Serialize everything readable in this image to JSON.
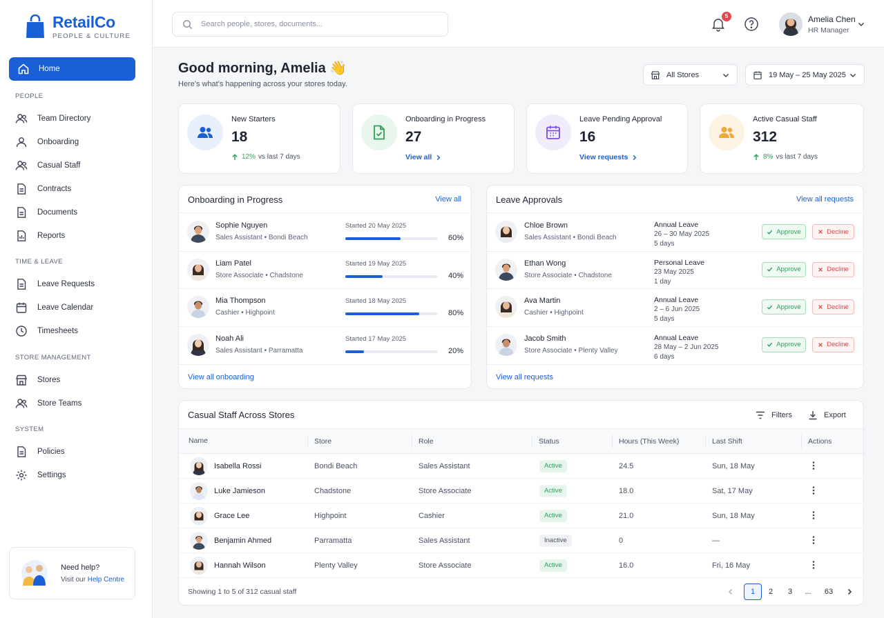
{
  "brand": {
    "name": "RetailCo",
    "tagline": "PEOPLE & CULTURE"
  },
  "sidebar": {
    "home_label": "Home",
    "sections": [
      {
        "title": "PEOPLE",
        "items": [
          {
            "label": "Team Directory",
            "icon": "users-icon"
          },
          {
            "label": "Onboarding",
            "icon": "user-icon"
          },
          {
            "label": "Casual Staff",
            "icon": "users-icon"
          },
          {
            "label": "Contracts",
            "icon": "document-icon"
          },
          {
            "label": "Documents",
            "icon": "document-icon"
          },
          {
            "label": "Reports",
            "icon": "report-icon"
          }
        ]
      },
      {
        "title": "TIME & LEAVE",
        "items": [
          {
            "label": "Leave Requests",
            "icon": "document-icon"
          },
          {
            "label": "Leave Calendar",
            "icon": "calendar-icon"
          },
          {
            "label": "Timesheets",
            "icon": "clock-icon"
          }
        ]
      },
      {
        "title": "STORE MANAGEMENT",
        "items": [
          {
            "label": "Stores",
            "icon": "store-icon"
          },
          {
            "label": "Store Teams",
            "icon": "users-icon"
          }
        ]
      },
      {
        "title": "SYSTEM",
        "items": [
          {
            "label": "Policies",
            "icon": "document-icon"
          },
          {
            "label": "Settings",
            "icon": "gear-icon"
          }
        ]
      }
    ],
    "help": {
      "title": "Need help?",
      "text": "Visit our ",
      "link": "Help Centre"
    }
  },
  "topbar": {
    "search_placeholder": "Search people, stores, documents...",
    "notification_count": "5",
    "user": {
      "name": "Amelia Chen",
      "role": "HR Manager"
    }
  },
  "header": {
    "greeting": "Good morning, Amelia 👋",
    "subtitle": "Here's what's happening across your stores today.",
    "store_filter": "All Stores",
    "date_range": "19 May – 25 May 2025"
  },
  "stats": [
    {
      "label": "New Starters",
      "value": "18",
      "change": "12%",
      "change_text": "vs last 7 days"
    },
    {
      "label": "Onboarding in Progress",
      "value": "27",
      "link": "View all"
    },
    {
      "label": "Leave Pending Approval",
      "value": "16",
      "link": "View requests"
    },
    {
      "label": "Active Casual Staff",
      "value": "312",
      "change": "8%",
      "change_text": "vs last 7 days"
    }
  ],
  "onboarding": {
    "title": "Onboarding in Progress",
    "view_all": "View all",
    "footer_link": "View all onboarding",
    "people": [
      {
        "name": "Sophie Nguyen",
        "role": "Sales Assistant • Bondi Beach",
        "started": "Started 20 May 2025",
        "progress": 60,
        "progress_label": "60%"
      },
      {
        "name": "Liam Patel",
        "role": "Store Associate • Chadstone",
        "started": "Started 19 May 2025",
        "progress": 40,
        "progress_label": "40%"
      },
      {
        "name": "Mia Thompson",
        "role": "Cashier • Highpoint",
        "started": "Started 18 May 2025",
        "progress": 80,
        "progress_label": "80%"
      },
      {
        "name": "Noah Ali",
        "role": "Sales Assistant • Parramatta",
        "started": "Started 17 May 2025",
        "progress": 20,
        "progress_label": "20%"
      }
    ]
  },
  "leave": {
    "title": "Leave Approvals",
    "view_all": "View all requests",
    "footer_link": "View all requests",
    "approve_label": "Approve",
    "decline_label": "Decline",
    "requests": [
      {
        "name": "Chloe Brown",
        "role": "Sales Assistant • Bondi Beach",
        "type": "Annual Leave",
        "dates": "26 – 30 May 2025",
        "days": "5 days"
      },
      {
        "name": "Ethan Wong",
        "role": "Store Associate • Chadstone",
        "type": "Personal Leave",
        "dates": "23 May 2025",
        "days": "1 day"
      },
      {
        "name": "Ava Martin",
        "role": "Cashier • Highpoint",
        "type": "Annual Leave",
        "dates": "2 – 6 Jun 2025",
        "days": "5 days"
      },
      {
        "name": "Jacob Smith",
        "role": "Store Associate • Plenty Valley",
        "type": "Annual Leave",
        "dates": "28 May – 2 Jun 2025",
        "days": "6 days"
      }
    ]
  },
  "casual": {
    "title": "Casual Staff Across Stores",
    "filters_label": "Filters",
    "export_label": "Export",
    "columns": [
      "Name",
      "Store",
      "Role",
      "Status",
      "Hours (This Week)",
      "Last Shift",
      "Actions"
    ],
    "rows": [
      {
        "name": "Isabella Rossi",
        "store": "Bondi Beach",
        "role": "Sales Assistant",
        "status": "Active",
        "hours": "24.5",
        "last_shift": "Sun, 18 May"
      },
      {
        "name": "Luke Jamieson",
        "store": "Chadstone",
        "role": "Store Associate",
        "status": "Active",
        "hours": "18.0",
        "last_shift": "Sat, 17 May"
      },
      {
        "name": "Grace Lee",
        "store": "Highpoint",
        "role": "Cashier",
        "status": "Active",
        "hours": "21.0",
        "last_shift": "Sun, 18 May"
      },
      {
        "name": "Benjamin Ahmed",
        "store": "Parramatta",
        "role": "Sales Assistant",
        "status": "Inactive",
        "hours": "0",
        "last_shift": "—"
      },
      {
        "name": "Hannah Wilson",
        "store": "Plenty Valley",
        "role": "Store Associate",
        "status": "Active",
        "hours": "16.0",
        "last_shift": "Fri, 16 May"
      }
    ],
    "showing": "Showing 1 to 5 of 312 casual staff",
    "pages": [
      "1",
      "2",
      "3",
      "...",
      "63"
    ],
    "current_page": "1"
  },
  "colors": {
    "accent": "#1a5fd6",
    "success": "#2f9e5a",
    "danger": "#d9474c"
  }
}
